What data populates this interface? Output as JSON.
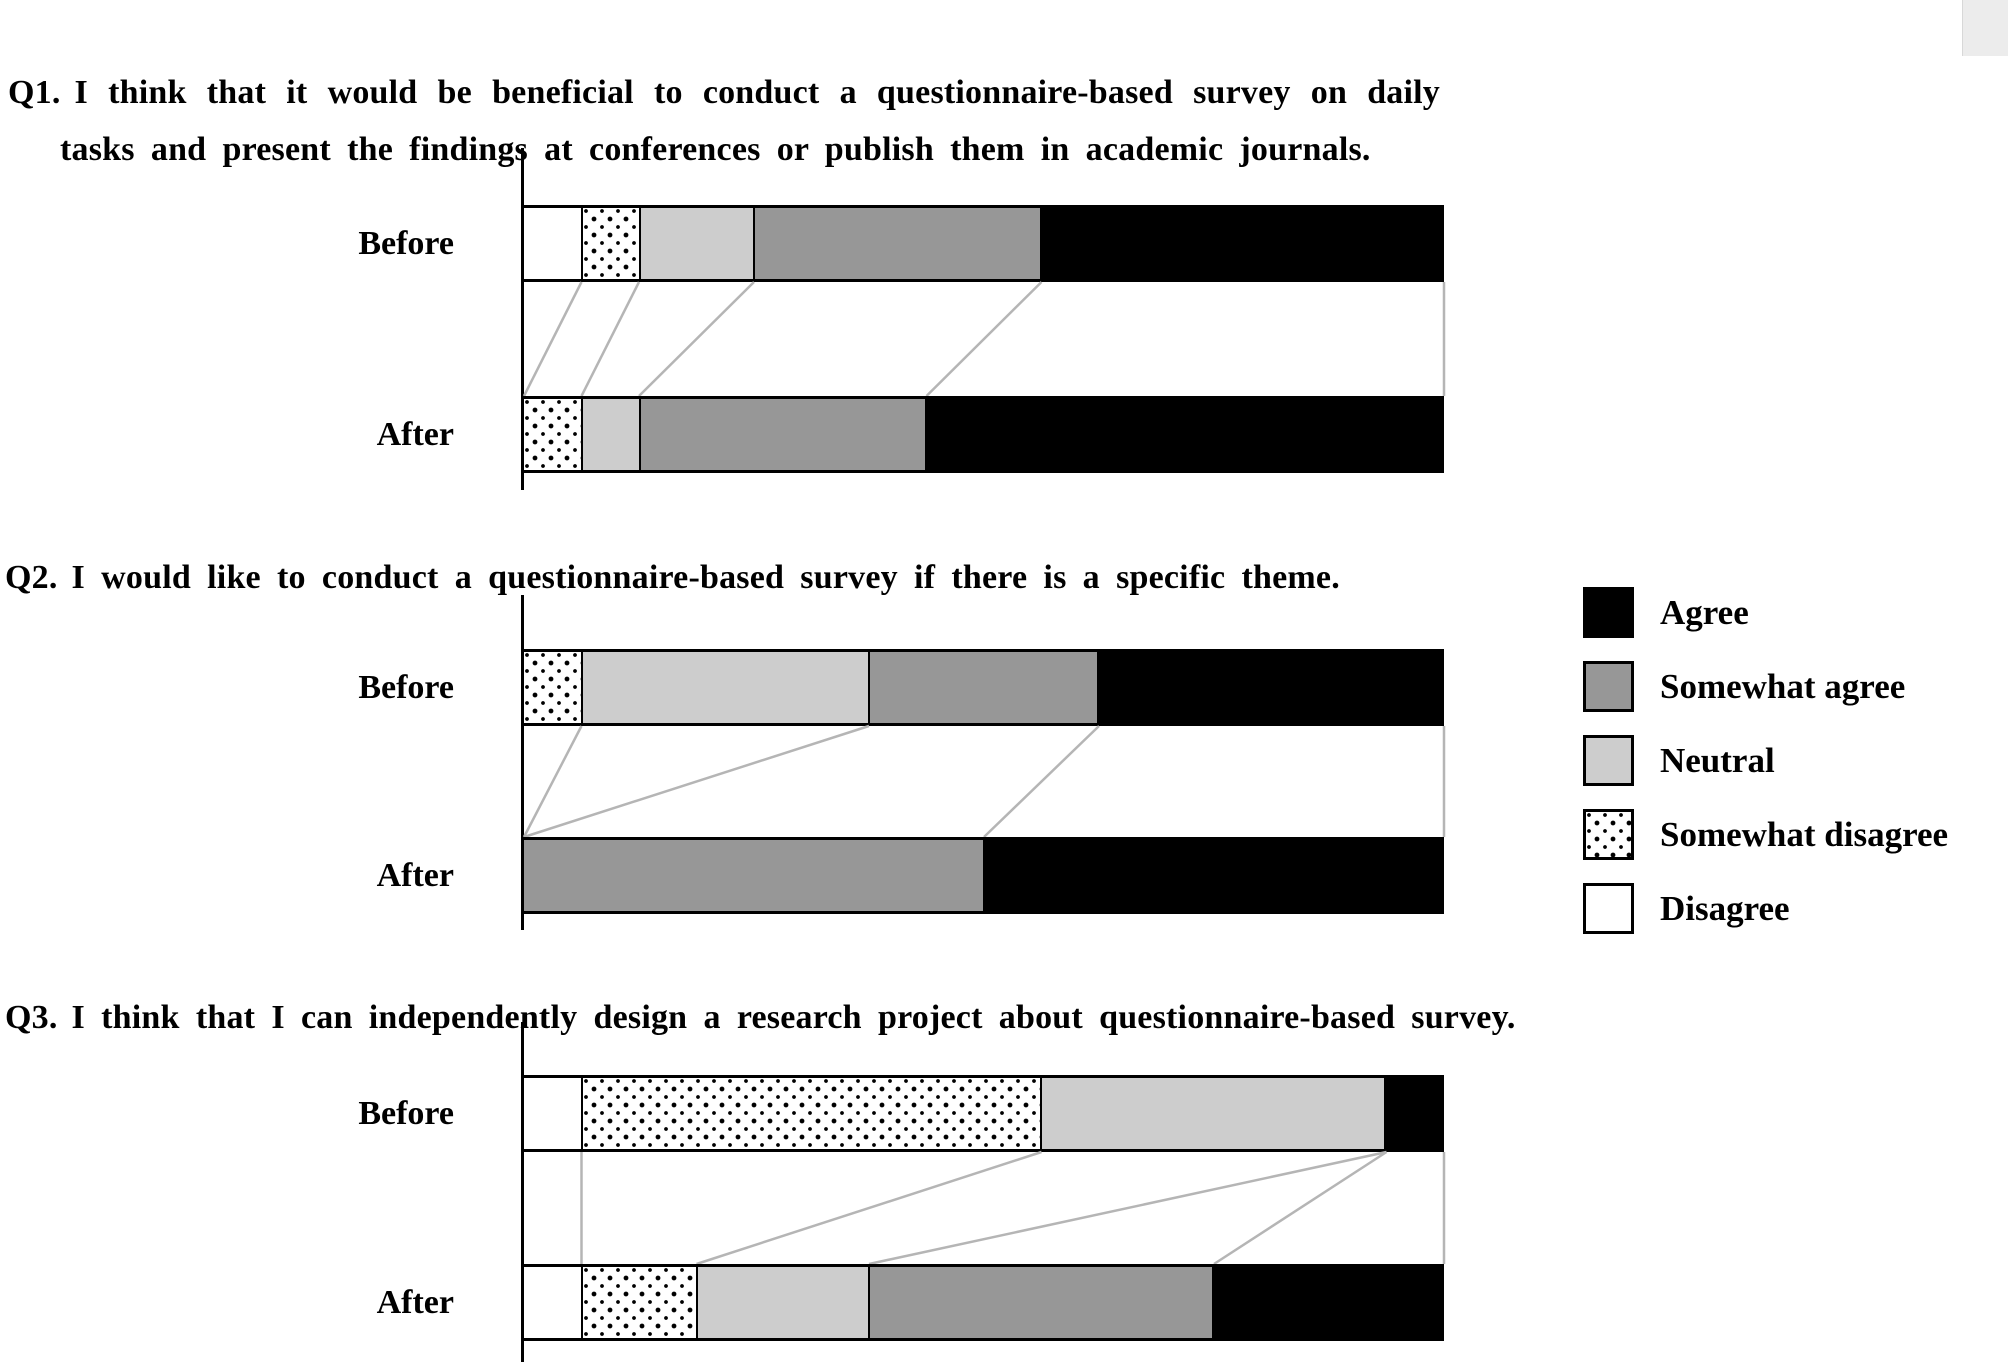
{
  "colors": {
    "agree": "#000000",
    "somewhat_agree": "#979797",
    "neutral": "#cdcdcd",
    "somewhat_disagree_pattern": "black dots on white",
    "disagree": "#ffffff",
    "connector": "#b5b5b5"
  },
  "legend": {
    "items": [
      {
        "key": "agree",
        "label": "Agree"
      },
      {
        "key": "somewhat-agree",
        "label": "Somewhat agree"
      },
      {
        "key": "neutral",
        "label": "Neutral"
      },
      {
        "key": "somewhat-disagree",
        "label": "Somewhat disagree"
      },
      {
        "key": "disagree",
        "label": "Disagree"
      }
    ]
  },
  "chart_data": {
    "type": "bar",
    "subtype": "horizontal-100pct-stacked-before-after",
    "total_per_bar": 16,
    "segment_order_left_to_right": [
      "Disagree",
      "Somewhat disagree",
      "Neutral",
      "Somewhat agree",
      "Agree"
    ],
    "row_labels": [
      "Before",
      "After"
    ],
    "legend_position": "right",
    "grid": "off",
    "questions": [
      {
        "id": "Q1",
        "prefix": "Q1.",
        "title": "I think that it would be beneficial to conduct a questionnaire-based survey on daily tasks and present the findings at conferences or publish them in academic journals.",
        "rows": [
          {
            "label": "Before",
            "values": [
              1,
              1,
              2,
              5,
              7
            ]
          },
          {
            "label": "After",
            "values": [
              0,
              1,
              1,
              5,
              9
            ]
          }
        ]
      },
      {
        "id": "Q2",
        "prefix": "Q2.",
        "title": "I would like to conduct a questionnaire-based survey if there is a specific theme.",
        "rows": [
          {
            "label": "Before",
            "values": [
              0,
              1,
              5,
              4,
              6
            ]
          },
          {
            "label": "After",
            "values": [
              0,
              0,
              0,
              8,
              8
            ]
          }
        ]
      },
      {
        "id": "Q3",
        "prefix": "Q3.",
        "title": "I think that I can independently design a research project about questionnaire-based survey.",
        "rows": [
          {
            "label": "Before",
            "values": [
              1,
              8,
              6,
              0,
              1
            ]
          },
          {
            "label": "After",
            "values": [
              1,
              2,
              3,
              6,
              4
            ]
          }
        ]
      }
    ]
  }
}
